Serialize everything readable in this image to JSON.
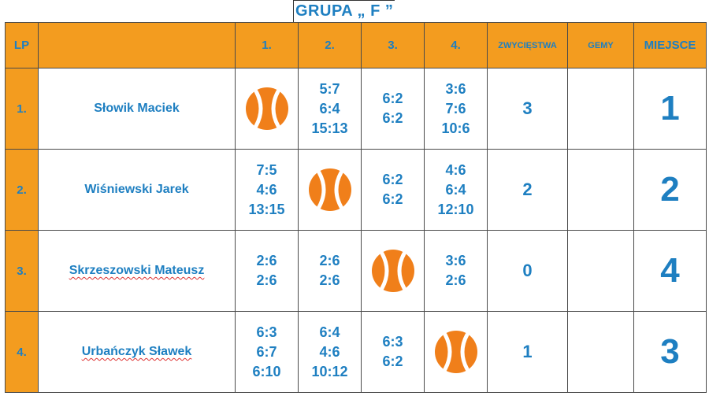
{
  "title": "GRUPA „ F ”",
  "headers": {
    "lp": "LP",
    "name": "",
    "c1": "1.",
    "c2": "2.",
    "c3": "3.",
    "c4": "4.",
    "wins": "ZWYCIĘSTWA",
    "games": "GEMY",
    "place": "MIEJSCE"
  },
  "players": [
    {
      "lp": "1.",
      "name": "Słowik Maciek",
      "scores": [
        null,
        [
          "5:7",
          "6:4",
          "15:13"
        ],
        [
          "6:2",
          "6:2"
        ],
        [
          "3:6",
          "7:6",
          "10:6"
        ]
      ],
      "wins": "3",
      "games": "",
      "place": "1"
    },
    {
      "lp": "2.",
      "name": "Wiśniewski Jarek",
      "scores": [
        [
          "7:5",
          "4:6",
          "13:15"
        ],
        null,
        [
          "6:2",
          "6:2"
        ],
        [
          "4:6",
          "6:4",
          "12:10"
        ]
      ],
      "wins": "2",
      "games": "",
      "place": "2"
    },
    {
      "lp": "3.",
      "name": "Skrzeszowski Mateusz",
      "scores": [
        [
          "2:6",
          "2:6"
        ],
        [
          "2:6",
          "2:6"
        ],
        null,
        [
          "3:6",
          "2:6"
        ]
      ],
      "wins": "0",
      "games": "",
      "place": "4"
    },
    {
      "lp": "4.",
      "name": "Urbańczyk Sławek",
      "scores": [
        [
          "6:3",
          "6:7",
          "6:10"
        ],
        [
          "6:4",
          "4:6",
          "10:12"
        ],
        [
          "6:3",
          "6:2"
        ],
        null
      ],
      "wins": "1",
      "games": "",
      "place": "3"
    }
  ],
  "colors": {
    "accent_orange": "#f39c1f",
    "text_blue": "#1e7fc1",
    "ball_orange": "#f07f1a"
  },
  "icons": {
    "self_match": "tennis-ball-icon"
  }
}
